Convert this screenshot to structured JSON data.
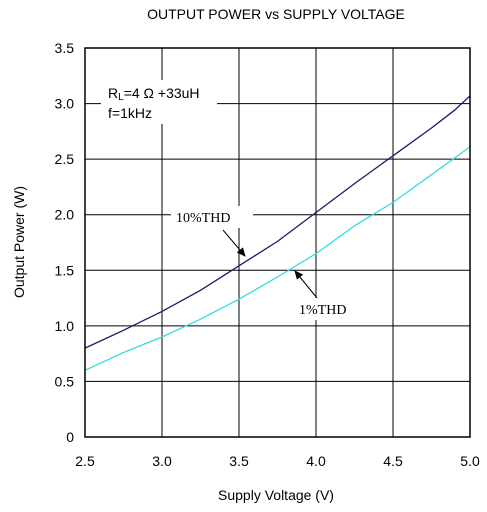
{
  "chart_data": {
    "type": "line",
    "title": "OUTPUT POWER vs SUPPLY VOLTAGE",
    "xlabel": "Supply Voltage (V)",
    "ylabel": "Output Power (W)",
    "xlim": [
      2.5,
      5.0
    ],
    "ylim": [
      0,
      3.5
    ],
    "xticks": [
      "2.5",
      "3.0",
      "3.5",
      "4.0",
      "4.5",
      "5.0"
    ],
    "yticks": [
      "0",
      "0.5",
      "1.0",
      "1.5",
      "2.0",
      "2.5",
      "3.0",
      "3.5"
    ],
    "grid": true,
    "conditions": {
      "line1_main": "R",
      "line1_sub": "L",
      "line1_rest": "=4 Ω +33uH",
      "line2": "f=1kHz"
    },
    "annotations": [
      "10%THD",
      "1%THD"
    ],
    "series": [
      {
        "name": "10%THD",
        "color": "#1a1a66",
        "x": [
          2.5,
          2.75,
          3.0,
          3.25,
          3.5,
          3.75,
          4.0,
          4.25,
          4.5,
          4.75,
          4.9,
          5.0
        ],
        "y": [
          0.8,
          0.96,
          1.13,
          1.32,
          1.54,
          1.76,
          2.02,
          2.28,
          2.53,
          2.78,
          2.94,
          3.07
        ]
      },
      {
        "name": "1%THD",
        "color": "#33dddd",
        "x": [
          2.5,
          2.75,
          3.0,
          3.25,
          3.5,
          3.75,
          4.0,
          4.25,
          4.5,
          4.75,
          5.0
        ],
        "y": [
          0.6,
          0.76,
          0.9,
          1.06,
          1.24,
          1.44,
          1.65,
          1.9,
          2.11,
          2.36,
          2.61
        ]
      }
    ]
  }
}
